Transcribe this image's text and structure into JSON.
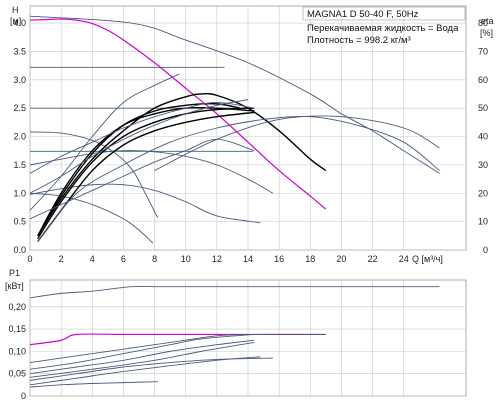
{
  "chart_data": {
    "type": "line",
    "title": "MAGNA1 D 50-40 F, 50Hz",
    "annotations": [
      "Перекачиваемая жидкость = Вода",
      "Плотность = 998.2 кг/м³"
    ],
    "xlabel": "Q [м³/ч]",
    "xlim": [
      0,
      28
    ],
    "x_ticks": [
      "0",
      "2",
      "4",
      "6",
      "8",
      "10",
      "12",
      "14",
      "16",
      "18",
      "20",
      "22",
      "24"
    ],
    "head_axis": {
      "label_top": "H",
      "label_unit": "[м]",
      "ylim": [
        0,
        4.3
      ],
      "ticks": [
        "0.0",
        "0.5",
        "1.0",
        "1.5",
        "2.0",
        "2.5",
        "3.0",
        "3.5",
        "4.0"
      ]
    },
    "eta_axis": {
      "label": "eta",
      "label_unit": "[%]",
      "ylim": [
        0,
        86
      ],
      "ticks": [
        "0",
        "10",
        "20",
        "30",
        "40",
        "50",
        "60",
        "70",
        "80"
      ]
    },
    "power_axis": {
      "label_top": "P1",
      "label_unit": "[кВт]",
      "ylim": [
        0,
        0.26
      ],
      "ticks": [
        "0",
        "0,05",
        "0,10",
        "0,15",
        "0,20"
      ]
    },
    "colors": {
      "grey": "#4a5c7c",
      "magenta": "#d000d0",
      "black": "#000000",
      "teal": "#2c6a6a"
    },
    "head_series": [
      {
        "style": "grey",
        "x": [
          0,
          6.5,
          10,
          14,
          18,
          20,
          22,
          24,
          26.3
        ],
        "y": [
          4.12,
          4.0,
          3.7,
          3.3,
          2.75,
          2.4,
          2.1,
          1.75,
          1.35
        ]
      },
      {
        "style": "magenta",
        "x": [
          0,
          1,
          2,
          3,
          4,
          5,
          6,
          8,
          10,
          12,
          14,
          16,
          18,
          19
        ],
        "y": [
          4.05,
          4.06,
          4.07,
          4.05,
          3.99,
          3.87,
          3.7,
          3.3,
          2.85,
          2.4,
          1.9,
          1.4,
          0.95,
          0.72
        ]
      },
      {
        "style": "grey",
        "x": [
          0,
          3,
          7,
          12.5
        ],
        "y": [
          3.22,
          3.22,
          3.22,
          3.22
        ]
      },
      {
        "style": "grey",
        "x": [
          0,
          3,
          6,
          9,
          12,
          14.4
        ],
        "y": [
          2.5,
          2.5,
          2.5,
          2.5,
          2.5,
          2.5
        ]
      },
      {
        "style": "teal",
        "x": [
          0,
          4,
          8,
          12,
          14.3
        ],
        "y": [
          1.74,
          1.74,
          1.74,
          1.74,
          1.74
        ]
      },
      {
        "style": "grey",
        "x": [
          0,
          2,
          4,
          5.5,
          6.6,
          7.4,
          8.2
        ],
        "y": [
          2.08,
          2.06,
          1.93,
          1.7,
          1.4,
          1.0,
          0.57
        ]
      },
      {
        "style": "grey",
        "x": [
          0,
          2,
          4,
          6,
          7,
          7.9
        ],
        "y": [
          1.0,
          0.95,
          0.8,
          0.55,
          0.35,
          0.12
        ]
      },
      {
        "style": "grey",
        "x": [
          0,
          2,
          4,
          6,
          8,
          10,
          12,
          14,
          15.6
        ],
        "y": [
          1.5,
          1.6,
          1.7,
          1.75,
          1.73,
          1.65,
          1.5,
          1.25,
          1.0
        ]
      },
      {
        "style": "grey",
        "x": [
          0,
          2,
          4,
          6,
          8,
          10,
          12,
          14.8
        ],
        "y": [
          0.98,
          1.08,
          1.15,
          1.15,
          1.05,
          0.85,
          0.6,
          0.48
        ]
      }
    ],
    "eta_series": [
      {
        "style": "black",
        "x": [
          0.5,
          2,
          4,
          6,
          8,
          10,
          11,
          12,
          14,
          16,
          18,
          19
        ],
        "y": [
          5,
          18,
          32,
          42,
          50,
          54,
          55,
          54.5,
          50,
          42,
          32,
          28
        ]
      },
      {
        "style": "black",
        "x": [
          0.5,
          2,
          4,
          6,
          8,
          10,
          12,
          13.5
        ],
        "y": [
          5,
          19,
          34,
          44,
          49,
          51,
          51.5,
          50
        ]
      },
      {
        "style": "black",
        "x": [
          0.5,
          2,
          4,
          6,
          8,
          10,
          12,
          14.4
        ],
        "y": [
          5,
          20,
          35,
          44,
          48,
          50,
          50,
          49
        ]
      },
      {
        "style": "black",
        "x": [
          0.5,
          2,
          4,
          6,
          8,
          10,
          12,
          14.4
        ],
        "y": [
          4,
          17,
          31,
          40,
          45,
          48,
          49.5,
          50
        ]
      },
      {
        "style": "black",
        "x": [
          0.5,
          2,
          4,
          6,
          8,
          10,
          12,
          14.4
        ],
        "y": [
          3,
          14,
          28,
          37,
          42,
          45,
          47,
          48.5
        ]
      },
      {
        "style": "grey",
        "x": [
          0,
          2,
          4,
          6,
          8,
          10,
          12,
          14
        ],
        "y": [
          20,
          26,
          33,
          39,
          44,
          48,
          51,
          53
        ]
      },
      {
        "style": "grey",
        "x": [
          0,
          2,
          4,
          6,
          8,
          10,
          12,
          14.4
        ],
        "y": [
          27,
          33,
          38,
          43,
          47,
          50,
          52,
          50
        ]
      },
      {
        "style": "grey",
        "x": [
          0,
          2,
          4,
          6,
          8,
          9.6
        ],
        "y": [
          14,
          26,
          40,
          52,
          58,
          62
        ]
      },
      {
        "style": "grey",
        "x": [
          0,
          2,
          4,
          6,
          8,
          10,
          12,
          14.4
        ],
        "y": [
          11,
          16,
          21,
          26,
          31,
          35,
          39,
          35
        ]
      },
      {
        "style": "grey",
        "x": [
          0.5,
          3,
          6,
          9,
          12,
          15,
          18,
          21,
          24,
          26.3
        ],
        "y": [
          3,
          20,
          30,
          38,
          43,
          46,
          47,
          44,
          38,
          28
        ]
      },
      {
        "style": "grey",
        "x": [
          8,
          12,
          16,
          20,
          24,
          26.3
        ],
        "y": [
          28,
          39,
          46,
          47,
          43,
          36
        ]
      }
    ],
    "power_series": [
      {
        "style": "grey",
        "x": [
          0,
          2,
          4,
          6.5,
          8,
          12,
          16,
          20,
          24,
          26.3
        ],
        "y": [
          0.22,
          0.23,
          0.235,
          0.245,
          0.245,
          0.245,
          0.245,
          0.245,
          0.245,
          0.245
        ]
      },
      {
        "style": "magenta",
        "x": [
          0,
          2,
          3,
          6,
          10,
          14,
          18,
          19
        ],
        "y": [
          0.115,
          0.125,
          0.138,
          0.138,
          0.138,
          0.138,
          0.138,
          0.138
        ]
      },
      {
        "style": "grey",
        "x": [
          0,
          3,
          6,
          9,
          12,
          14.4,
          19
        ],
        "y": [
          0.075,
          0.09,
          0.105,
          0.12,
          0.135,
          0.138,
          0.138
        ]
      },
      {
        "style": "grey",
        "x": [
          0,
          3,
          6,
          9,
          11,
          14.4
        ],
        "y": [
          0.06,
          0.075,
          0.095,
          0.115,
          0.128,
          0.138
        ]
      },
      {
        "style": "grey",
        "x": [
          0,
          3,
          6,
          9,
          12,
          14.4
        ],
        "y": [
          0.05,
          0.065,
          0.08,
          0.1,
          0.115,
          0.125
        ]
      },
      {
        "style": "grey",
        "x": [
          0,
          3,
          6,
          9,
          12,
          15.6
        ],
        "y": [
          0.035,
          0.05,
          0.065,
          0.075,
          0.082,
          0.085
        ]
      },
      {
        "style": "grey",
        "x": [
          0,
          3,
          6,
          9,
          12,
          14.8
        ],
        "y": [
          0.025,
          0.04,
          0.055,
          0.068,
          0.08,
          0.088
        ]
      },
      {
        "style": "grey",
        "x": [
          0,
          2,
          4,
          6,
          8.2
        ],
        "y": [
          0.02,
          0.025,
          0.028,
          0.03,
          0.032
        ]
      },
      {
        "style": "grey",
        "x": [
          0,
          4,
          8,
          11,
          14.4
        ],
        "y": [
          0.042,
          0.06,
          0.08,
          0.1,
          0.12
        ]
      }
    ]
  }
}
